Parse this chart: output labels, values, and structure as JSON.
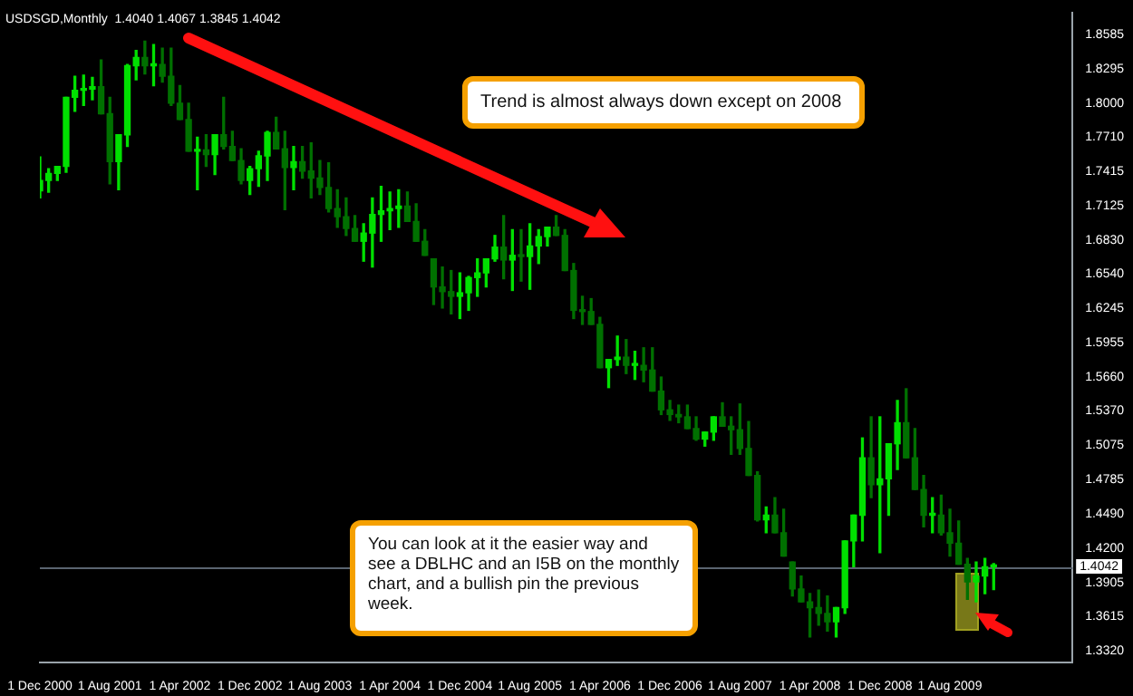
{
  "chart_data": {
    "type": "candlestick",
    "title": "USDSGD,Monthly  1.4040 1.4067 1.3845 1.4042",
    "colors": [
      "#00e000",
      "#00e000",
      "#00e000",
      "#00e000",
      "#00e000",
      "#00e000",
      "#00e000",
      "#007000",
      "#007000",
      "#00e000",
      "#00e000",
      "#00e000",
      "#007000",
      "#00e000",
      "#007000",
      "#007000",
      "#007000",
      "#007000",
      "#00e000",
      "#007000",
      "#00e000",
      "#007000",
      "#007000",
      "#007000",
      "#00e000",
      "#00e000",
      "#00e000",
      "#007000",
      "#007000",
      "#00e000",
      "#007000",
      "#007000",
      "#007000",
      "#007000",
      "#007000",
      "#007000",
      "#007000",
      "#00e000",
      "#00e000",
      "#00e000",
      "#00e000",
      "#00e000",
      "#007000",
      "#007000",
      "#007000",
      "#007000",
      "#007000",
      "#007000",
      "#00e000",
      "#00e000",
      "#00e000",
      "#00e000",
      "#00e000",
      "#007000",
      "#00e000",
      "#007000",
      "#00e000",
      "#00e000",
      "#00e000",
      "#007000",
      "#007000",
      "#007000",
      "#007000",
      "#007000",
      "#007000",
      "#00e000",
      "#00e000",
      "#007000",
      "#00e000",
      "#007000",
      "#007000",
      "#007000",
      "#007000",
      "#007000",
      "#007000",
      "#007000",
      "#00e000",
      "#00e000",
      "#007000",
      "#007000",
      "#007000",
      "#007000",
      "#007000",
      "#00e000",
      "#007000",
      "#007000",
      "#007000",
      "#007000",
      "#007000",
      "#007000",
      "#007000",
      "#00e000",
      "#00e000",
      "#00e000",
      "#00e000",
      "#007000",
      "#00e000",
      "#00e000",
      "#00e000",
      "#007000",
      "#007000",
      "#007000",
      "#00e000",
      "#007000",
      "#007000",
      "#007000",
      "#007000",
      "#00e000",
      "#00e000",
      "#00e000"
    ],
    "annotations": [
      "Trend is almost always down except on 2008",
      "You can look at it the easier way and see a DBLHC and an I5B on the monthly chart, and a bullish pin the previous week."
    ],
    "x": [
      "2000-12",
      "2001-01",
      "2001-02",
      "2001-03",
      "2001-04",
      "2001-05",
      "2001-06",
      "2001-07",
      "2001-08",
      "2001-09",
      "2001-10",
      "2001-11",
      "2001-12",
      "2002-01",
      "2002-02",
      "2002-03",
      "2002-04",
      "2002-05",
      "2002-06",
      "2002-07",
      "2002-08",
      "2002-09",
      "2002-10",
      "2002-11",
      "2002-12",
      "2003-01",
      "2003-02",
      "2003-03",
      "2003-04",
      "2003-05",
      "2003-06",
      "2003-07",
      "2003-08",
      "2003-09",
      "2003-10",
      "2003-11",
      "2003-12",
      "2004-01",
      "2004-02",
      "2004-03",
      "2004-04",
      "2004-05",
      "2004-06",
      "2004-07",
      "2004-08",
      "2004-09",
      "2004-10",
      "2004-11",
      "2004-12",
      "2005-01",
      "2005-02",
      "2005-03",
      "2005-04",
      "2005-05",
      "2005-06",
      "2005-07",
      "2005-08",
      "2005-09",
      "2005-10",
      "2005-11",
      "2005-12",
      "2006-01",
      "2006-02",
      "2006-03",
      "2006-04",
      "2006-05",
      "2006-06",
      "2006-07",
      "2006-08",
      "2006-09",
      "2006-10",
      "2006-11",
      "2006-12",
      "2007-01",
      "2007-02",
      "2007-03",
      "2007-04",
      "2007-05",
      "2007-06",
      "2007-07",
      "2007-08",
      "2007-09",
      "2007-10",
      "2007-11",
      "2007-12",
      "2008-01",
      "2008-02",
      "2008-03",
      "2008-04",
      "2008-05",
      "2008-06",
      "2008-07",
      "2008-08",
      "2008-09",
      "2008-10",
      "2008-11",
      "2008-12",
      "2009-01",
      "2009-02",
      "2009-03",
      "2009-04",
      "2009-05",
      "2009-06",
      "2009-07",
      "2009-08",
      "2009-09",
      "2009-10",
      "2009-11",
      "2009-12",
      "2010-01"
    ],
    "ohlc": [
      [
        1.725,
        1.754,
        1.719,
        1.734
      ],
      [
        1.734,
        1.744,
        1.724,
        1.74
      ],
      [
        1.74,
        1.746,
        1.734,
        1.746
      ],
      [
        1.746,
        1.805,
        1.741,
        1.805
      ],
      [
        1.805,
        1.823,
        1.793,
        1.811
      ],
      [
        1.811,
        1.824,
        1.798,
        1.812
      ],
      [
        1.812,
        1.822,
        1.803,
        1.814
      ],
      [
        1.814,
        1.837,
        1.791,
        1.791
      ],
      [
        1.791,
        1.805,
        1.731,
        1.75
      ],
      [
        1.75,
        1.773,
        1.726,
        1.773
      ],
      [
        1.773,
        1.833,
        1.763,
        1.832
      ],
      [
        1.832,
        1.845,
        1.82,
        1.839
      ],
      [
        1.839,
        1.853,
        1.825,
        1.832
      ],
      [
        1.832,
        1.85,
        1.815,
        1.833
      ],
      [
        1.833,
        1.847,
        1.818,
        1.823
      ],
      [
        1.823,
        1.847,
        1.798,
        1.8
      ],
      [
        1.8,
        1.815,
        1.786,
        1.786
      ],
      [
        1.786,
        1.8,
        1.759,
        1.759
      ],
      [
        1.759,
        1.771,
        1.726,
        1.76
      ],
      [
        1.76,
        1.773,
        1.746,
        1.756
      ],
      [
        1.756,
        1.773,
        1.739,
        1.773
      ],
      [
        1.773,
        1.805,
        1.761,
        1.763
      ],
      [
        1.763,
        1.776,
        1.751,
        1.751
      ],
      [
        1.751,
        1.761,
        1.731,
        1.734
      ],
      [
        1.734,
        1.746,
        1.722,
        1.744
      ],
      [
        1.744,
        1.759,
        1.729,
        1.755
      ],
      [
        1.755,
        1.776,
        1.734,
        1.775
      ],
      [
        1.775,
        1.788,
        1.761,
        1.761
      ],
      [
        1.761,
        1.776,
        1.709,
        1.745
      ],
      [
        1.745,
        1.763,
        1.726,
        1.75
      ],
      [
        1.75,
        1.763,
        1.736,
        1.742
      ],
      [
        1.742,
        1.766,
        1.719,
        1.736
      ],
      [
        1.736,
        1.751,
        1.722,
        1.728
      ],
      [
        1.728,
        1.749,
        1.707,
        1.71
      ],
      [
        1.71,
        1.726,
        1.694,
        1.703
      ],
      [
        1.703,
        1.719,
        1.687,
        1.693
      ],
      [
        1.693,
        1.704,
        1.682,
        1.682
      ],
      [
        1.682,
        1.697,
        1.665,
        1.689
      ],
      [
        1.689,
        1.719,
        1.66,
        1.705
      ],
      [
        1.705,
        1.729,
        1.682,
        1.708
      ],
      [
        1.708,
        1.724,
        1.692,
        1.71
      ],
      [
        1.71,
        1.726,
        1.694,
        1.712
      ],
      [
        1.712,
        1.724,
        1.699,
        1.699
      ],
      [
        1.699,
        1.714,
        1.682,
        1.682
      ],
      [
        1.682,
        1.692,
        1.67,
        1.67
      ],
      [
        1.667,
        1.667,
        1.628,
        1.643
      ],
      [
        1.643,
        1.66,
        1.625,
        1.639
      ],
      [
        1.639,
        1.657,
        1.62,
        1.635
      ],
      [
        1.635,
        1.655,
        1.616,
        1.638
      ],
      [
        1.638,
        1.652,
        1.623,
        1.651
      ],
      [
        1.651,
        1.667,
        1.635,
        1.655
      ],
      [
        1.655,
        1.667,
        1.643,
        1.667
      ],
      [
        1.667,
        1.687,
        1.665,
        1.677
      ],
      [
        1.677,
        1.704,
        1.65,
        1.666
      ],
      [
        1.666,
        1.692,
        1.64,
        1.67
      ],
      [
        1.67,
        1.692,
        1.648,
        1.669
      ],
      [
        1.669,
        1.697,
        1.641,
        1.678
      ],
      [
        1.678,
        1.692,
        1.663,
        1.686
      ],
      [
        1.686,
        1.694,
        1.678,
        1.694
      ],
      [
        1.694,
        1.704,
        1.687,
        1.687
      ],
      [
        1.687,
        1.692,
        1.657,
        1.657
      ],
      [
        1.657,
        1.663,
        1.616,
        1.623
      ],
      [
        1.623,
        1.635,
        1.611,
        1.622
      ],
      [
        1.622,
        1.633,
        1.611,
        1.611
      ],
      [
        1.611,
        1.617,
        1.574,
        1.574
      ],
      [
        1.574,
        1.581,
        1.557,
        1.581
      ],
      [
        1.581,
        1.601,
        1.576,
        1.583
      ],
      [
        1.583,
        1.598,
        1.569,
        1.576
      ],
      [
        1.576,
        1.588,
        1.564,
        1.576
      ],
      [
        1.576,
        1.591,
        1.562,
        1.572
      ],
      [
        1.572,
        1.591,
        1.554,
        1.554
      ],
      [
        1.554,
        1.566,
        1.534,
        1.538
      ],
      [
        1.538,
        1.546,
        1.529,
        1.534
      ],
      [
        1.534,
        1.542,
        1.527,
        1.532
      ],
      [
        1.532,
        1.542,
        1.522,
        1.522
      ],
      [
        1.522,
        1.532,
        1.512,
        1.513
      ],
      [
        1.513,
        1.519,
        1.507,
        1.519
      ],
      [
        1.519,
        1.532,
        1.512,
        1.532
      ],
      [
        1.532,
        1.544,
        1.524,
        1.524
      ],
      [
        1.524,
        1.532,
        1.5,
        1.521
      ],
      [
        1.521,
        1.543,
        1.5,
        1.505
      ],
      [
        1.505,
        1.528,
        1.482,
        1.482
      ],
      [
        1.482,
        1.485,
        1.443,
        1.444
      ],
      [
        1.444,
        1.455,
        1.433,
        1.448
      ],
      [
        1.448,
        1.463,
        1.433,
        1.433
      ],
      [
        1.433,
        1.453,
        1.413,
        1.413
      ],
      [
        1.408,
        1.408,
        1.379,
        1.385
      ],
      [
        1.385,
        1.396,
        1.374,
        1.374
      ],
      [
        1.374,
        1.381,
        1.344,
        1.369
      ],
      [
        1.369,
        1.384,
        1.354,
        1.364
      ],
      [
        1.364,
        1.379,
        1.349,
        1.357
      ],
      [
        1.357,
        1.369,
        1.344,
        1.369
      ],
      [
        1.369,
        1.426,
        1.364,
        1.426
      ],
      [
        1.426,
        1.448,
        1.404,
        1.448
      ],
      [
        1.448,
        1.514,
        1.426,
        1.497
      ],
      [
        1.497,
        1.532,
        1.463,
        1.474
      ],
      [
        1.474,
        1.532,
        1.416,
        1.479
      ],
      [
        1.479,
        1.509,
        1.448,
        1.509
      ],
      [
        1.509,
        1.546,
        1.487,
        1.527
      ],
      [
        1.527,
        1.556,
        1.497,
        1.497
      ],
      [
        1.497,
        1.522,
        1.47,
        1.47
      ],
      [
        1.47,
        1.482,
        1.438,
        1.448
      ],
      [
        1.448,
        1.463,
        1.433,
        1.448
      ],
      [
        1.448,
        1.465,
        1.431,
        1.433
      ],
      [
        1.433,
        1.453,
        1.413,
        1.424
      ],
      [
        1.424,
        1.443,
        1.406,
        1.406
      ],
      [
        1.406,
        1.411,
        1.376,
        1.391
      ],
      [
        1.391,
        1.408,
        1.374,
        1.396
      ],
      [
        1.396,
        1.411,
        1.381,
        1.404
      ],
      [
        1.404,
        1.4067,
        1.3845,
        1.4042
      ]
    ],
    "xlim": [
      "2000-12",
      "2010-10"
    ],
    "xticks": [
      {
        "value": "2000-12",
        "label": "1 Dec 2000"
      },
      {
        "value": "2001-08",
        "label": "1 Aug 2001"
      },
      {
        "value": "2002-04",
        "label": "1 Apr 2002"
      },
      {
        "value": "2002-12",
        "label": "1 Dec 2002"
      },
      {
        "value": "2003-08",
        "label": "1 Aug 2003"
      },
      {
        "value": "2004-04",
        "label": "1 Apr 2004"
      },
      {
        "value": "2004-12",
        "label": "1 Dec 2004"
      },
      {
        "value": "2005-08",
        "label": "1 Aug 2005"
      },
      {
        "value": "2006-04",
        "label": "1 Apr 2006"
      },
      {
        "value": "2006-12",
        "label": "1 Dec 2006"
      },
      {
        "value": "2007-08",
        "label": "1 Aug 2007"
      },
      {
        "value": "2008-04",
        "label": "1 Apr 2008"
      },
      {
        "value": "2008-12",
        "label": "1 Dec 2008"
      },
      {
        "value": "2009-08",
        "label": "1 Aug 2009"
      }
    ],
    "ylim": [
      1.322,
      1.877
    ],
    "yticks": [
      {
        "value": 1.332,
        "label": "1.3320"
      },
      {
        "value": 1.3615,
        "label": "1.3615"
      },
      {
        "value": 1.3905,
        "label": "1.3905"
      },
      {
        "value": 1.42,
        "label": "1.4200"
      },
      {
        "value": 1.449,
        "label": "1.4490"
      },
      {
        "value": 1.4785,
        "label": "1.4785"
      },
      {
        "value": 1.5075,
        "label": "1.5075"
      },
      {
        "value": 1.537,
        "label": "1.5370"
      },
      {
        "value": 1.566,
        "label": "1.5660"
      },
      {
        "value": 1.5955,
        "label": "1.5955"
      },
      {
        "value": 1.6245,
        "label": "1.6245"
      },
      {
        "value": 1.654,
        "label": "1.6540"
      },
      {
        "value": 1.683,
        "label": "1.6830"
      },
      {
        "value": 1.7125,
        "label": "1.7125"
      },
      {
        "value": 1.7415,
        "label": "1.7415"
      },
      {
        "value": 1.771,
        "label": "1.7710"
      },
      {
        "value": 1.8,
        "label": "1.8000"
      },
      {
        "value": 1.8295,
        "label": "1.8295"
      },
      {
        "value": 1.8585,
        "label": "1.8585"
      }
    ],
    "ref_lines": [
      {
        "axis": "y",
        "value": 1.4042,
        "label": "1.4042",
        "color": "#5a6470"
      }
    ]
  }
}
